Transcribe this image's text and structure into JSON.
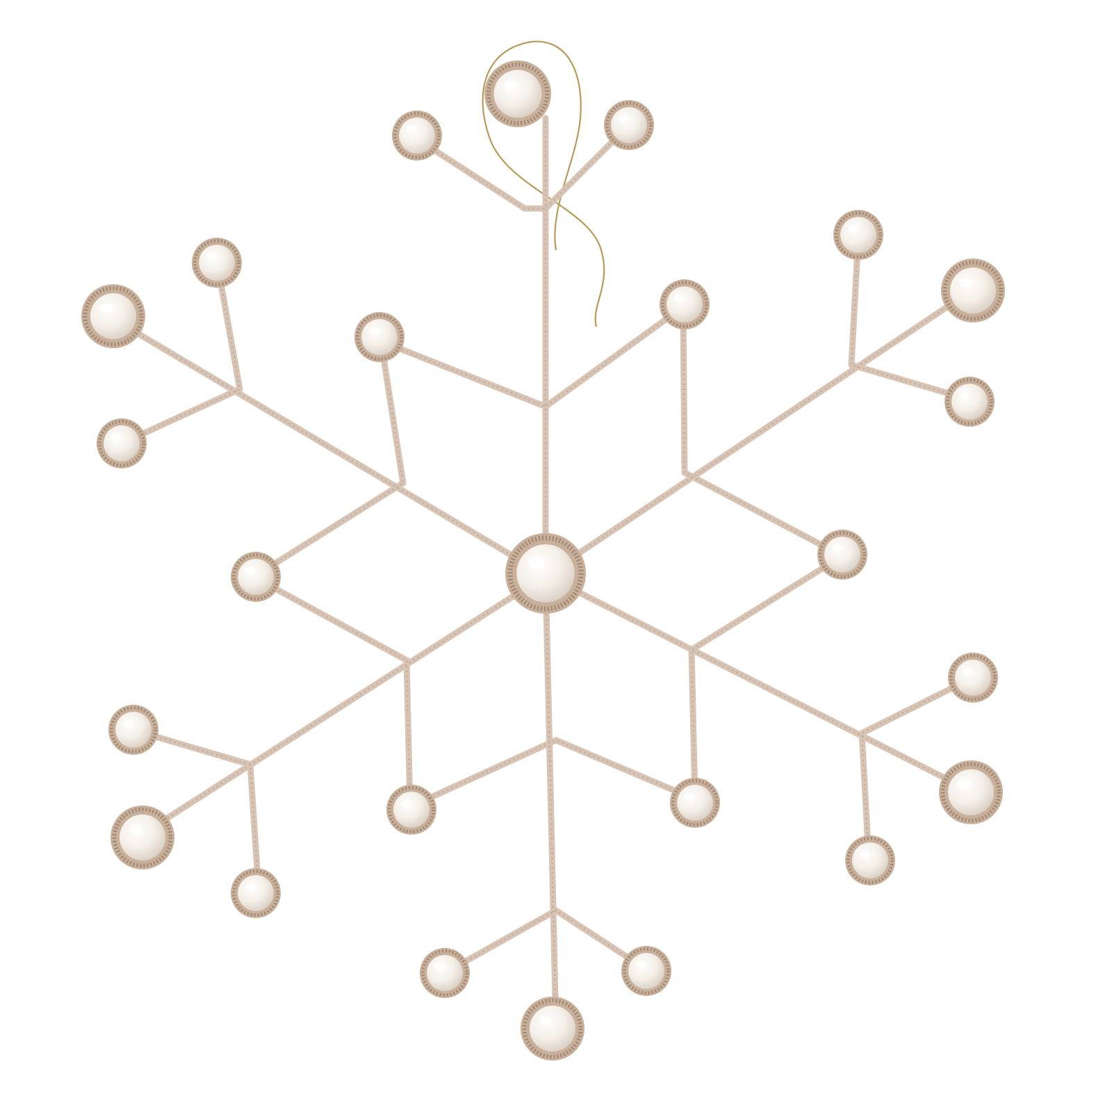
{
  "scene": {
    "subject": "snowflake-ornament",
    "background_color": "#ffffff"
  },
  "palette": {
    "wire": "#d8c4b4",
    "wire_glitter": "#bfa898",
    "bezel": "#c8b09a",
    "bezel_dots": "#9e8674",
    "pearl_light": "#ffffff",
    "pearl_mid": "#f4efe8",
    "pearl_dark": "#d9cfc3",
    "string": "#b89a5a"
  }
}
